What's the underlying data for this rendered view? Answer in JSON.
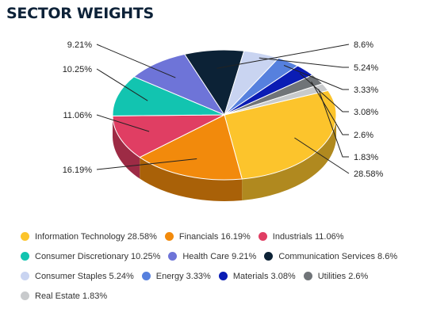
{
  "page": {
    "title": "SECTOR WEIGHTS"
  },
  "chart_data": {
    "type": "pie",
    "title": "SECTOR WEIGHTS",
    "slices": [
      {
        "name": "Information Technology",
        "value": 28.58,
        "color": "#fcc42c",
        "label": "28.58%",
        "legend": "Information Technology 28.58%"
      },
      {
        "name": "Financials",
        "value": 16.19,
        "color": "#f28a0c",
        "label": "16.19%",
        "legend": "Financials 16.19%"
      },
      {
        "name": "Industrials",
        "value": 11.06,
        "color": "#e03e63",
        "label": "11.06%",
        "legend": "Industrials 11.06%"
      },
      {
        "name": "Consumer Discretionary",
        "value": 10.25,
        "color": "#12c4b0",
        "label": "10.25%",
        "legend": "Consumer Discretionary 10.25%"
      },
      {
        "name": "Health Care",
        "value": 9.21,
        "color": "#6e74d8",
        "label": "9.21%",
        "legend": "Health Care 9.21%"
      },
      {
        "name": "Communication Services",
        "value": 8.6,
        "color": "#0c2236",
        "label": "8.6%",
        "legend": "Communication Services 8.6%"
      },
      {
        "name": "Consumer Staples",
        "value": 5.24,
        "color": "#c9d4f1",
        "label": "5.24%",
        "legend": "Consumer Staples 5.24%"
      },
      {
        "name": "Energy",
        "value": 3.33,
        "color": "#5680de",
        "label": "3.33%",
        "legend": "Energy 3.33%"
      },
      {
        "name": "Materials",
        "value": 3.08,
        "color": "#0a1cb4",
        "label": "3.08%",
        "legend": "Materials 3.08%"
      },
      {
        "name": "Utilities",
        "value": 2.6,
        "color": "#707478",
        "label": "2.6%",
        "legend": "Utilities 2.6%"
      },
      {
        "name": "Real Estate",
        "value": 1.83,
        "color": "#c8cacc",
        "label": "1.83%",
        "legend": "Real Estate 1.83%"
      }
    ],
    "legend_placement": "bottom"
  }
}
